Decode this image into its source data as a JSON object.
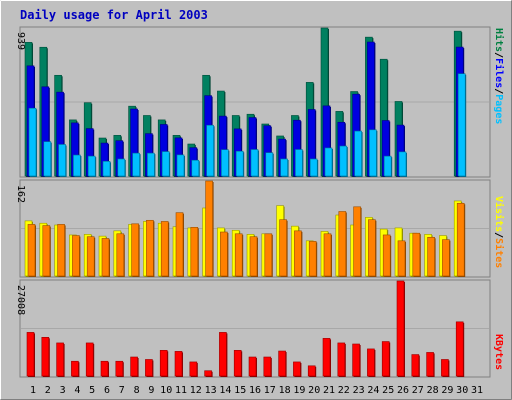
{
  "chart_data": [
    {
      "type": "bar",
      "title": "Daily usage for April 2003",
      "ymax_label": "939",
      "ylim": [
        0,
        939
      ],
      "legend": [
        {
          "label": "Pages",
          "color": "#00c0ff"
        },
        {
          "label": "/",
          "color": "#000000"
        },
        {
          "label": "Files",
          "color": "#0000ff"
        },
        {
          "label": "/",
          "color": "#000000"
        },
        {
          "label": "Hits",
          "color": "#008040"
        }
      ],
      "categories": [
        "1",
        "2",
        "3",
        "4",
        "5",
        "6",
        "7",
        "8",
        "9",
        "10",
        "11",
        "12",
        "13",
        "14",
        "15",
        "16",
        "17",
        "18",
        "19",
        "20",
        "21",
        "22",
        "23",
        "24",
        "25",
        "26",
        "27",
        "28",
        "29",
        "30",
        "31"
      ],
      "weekend_days": [
        "5",
        "6",
        "12",
        "13",
        "19",
        "20",
        "26",
        "27"
      ],
      "series": [
        {
          "name": "Hits",
          "color": "#008060",
          "values": [
            848,
            817,
            639,
            356,
            465,
            241,
            258,
            443,
            384,
            356,
            258,
            203,
            639,
            539,
            384,
            392,
            330,
            254,
            384,
            594,
            939,
            410,
            536,
            881,
            741,
            473,
            0,
            0,
            0,
            919,
            0
          ]
        },
        {
          "name": "Files",
          "color": "#0000e0",
          "values": [
            699,
            566,
            532,
            337,
            301,
            209,
            224,
            425,
            269,
            327,
            242,
            180,
            510,
            380,
            299,
            371,
            319,
            234,
            354,
            422,
            445,
            341,
            519,
            850,
            352,
            323,
            0,
            0,
            0,
            818,
            0
          ]
        },
        {
          "name": "Pages",
          "color": "#00c0ff",
          "values": [
            430,
            218,
            200,
            133,
            126,
            93,
            108,
            145,
            145,
            155,
            134,
            100,
            322,
            167,
            157,
            168,
            148,
            108,
            168,
            108,
            178,
            190,
            285,
            293,
            126,
            153,
            0,
            0,
            0,
            649,
            0
          ]
        }
      ]
    },
    {
      "type": "bar",
      "ymax_label": "162",
      "ylim": [
        0,
        162
      ],
      "legend": [
        {
          "label": "Sites",
          "color": "#ff8000"
        },
        {
          "label": "/",
          "color": "#000000"
        },
        {
          "label": "Visits",
          "color": "#ffff00"
        }
      ],
      "categories": [
        "1",
        "2",
        "3",
        "4",
        "5",
        "6",
        "7",
        "8",
        "9",
        "10",
        "11",
        "12",
        "13",
        "14",
        "15",
        "16",
        "17",
        "18",
        "19",
        "20",
        "21",
        "22",
        "23",
        "24",
        "25",
        "26",
        "27",
        "28",
        "29",
        "30",
        "31"
      ],
      "series": [
        {
          "name": "Visits",
          "color": "#ffff00",
          "values": [
            94,
            90,
            87,
            70,
            71,
            68,
            77,
            88,
            93,
            90,
            84,
            82,
            116,
            82,
            78,
            71,
            72,
            120,
            85,
            60,
            76,
            104,
            87,
            100,
            80,
            82,
            73,
            71,
            69,
            128,
            0
          ]
        },
        {
          "name": "Sites",
          "color": "#ff8000",
          "values": [
            88,
            86,
            88,
            69,
            67,
            64,
            72,
            89,
            95,
            93,
            108,
            83,
            162,
            75,
            72,
            67,
            72,
            96,
            77,
            59,
            72,
            110,
            118,
            96,
            70,
            60,
            73,
            66,
            62,
            124,
            0
          ]
        }
      ]
    },
    {
      "type": "bar",
      "ymax_label": "27008",
      "ylim": [
        0,
        27008
      ],
      "legend": [
        {
          "label": "KBytes",
          "color": "#ff0000"
        }
      ],
      "categories": [
        "1",
        "2",
        "3",
        "4",
        "5",
        "6",
        "7",
        "8",
        "9",
        "10",
        "11",
        "12",
        "13",
        "14",
        "15",
        "16",
        "17",
        "18",
        "19",
        "20",
        "21",
        "22",
        "23",
        "24",
        "25",
        "26",
        "27",
        "28",
        "29",
        "30",
        "31"
      ],
      "series": [
        {
          "name": "KBytes",
          "color": "#ff0000",
          "values": [
            12400,
            11000,
            9400,
            4200,
            9400,
            4200,
            4200,
            5400,
            4700,
            7300,
            7000,
            4000,
            1500,
            12400,
            7300,
            5400,
            5400,
            7100,
            4000,
            2900,
            10700,
            9400,
            9100,
            7700,
            9800,
            27008,
            6100,
            6700,
            4700,
            15400,
            0
          ]
        }
      ]
    }
  ]
}
